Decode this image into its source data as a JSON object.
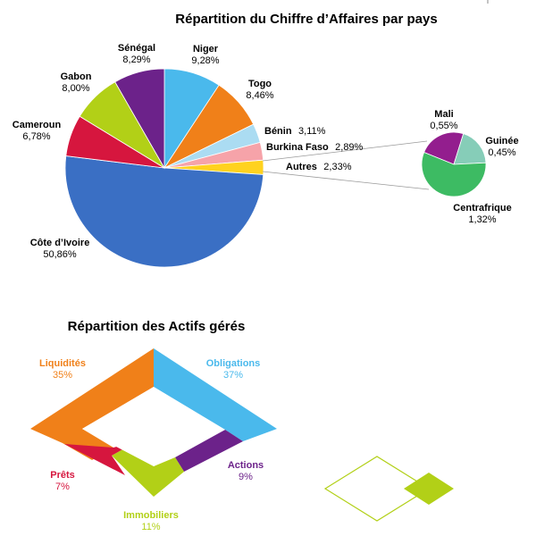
{
  "chart_data": [
    {
      "type": "pie",
      "title": "Répartition du Chiffre d’Affaires par pays",
      "slices": [
        {
          "name": "Niger",
          "value_label": "9,28%",
          "value": 9.28,
          "color": "#4ab9ec"
        },
        {
          "name": "Togo",
          "value_label": "8,46%",
          "value": 8.46,
          "color": "#f08019"
        },
        {
          "name": "Bénin",
          "value_label": "3,11%",
          "value": 3.11,
          "color": "#abdcf2"
        },
        {
          "name": "Burkina Faso",
          "value_label": "2,89%",
          "value": 2.89,
          "color": "#f6a3a9"
        },
        {
          "name": "Autres",
          "value_label": "2,33%",
          "value": 2.33,
          "color": "#ffd21f"
        },
        {
          "name": "Côte d’Ivoire",
          "value_label": "50,86%",
          "value": 50.86,
          "color": "#3a6fc4"
        },
        {
          "name": "Cameroun",
          "value_label": "6,78%",
          "value": 6.78,
          "color": "#d6163e"
        },
        {
          "name": "Gabon",
          "value_label": "8,00%",
          "value": 8.0,
          "color": "#b2d017"
        },
        {
          "name": "Sénégal",
          "value_label": "8,29%",
          "value": 8.29,
          "color": "#6c228a"
        }
      ]
    },
    {
      "type": "pie",
      "title": "",
      "detail_of": "Autres",
      "slices": [
        {
          "name": "Mali",
          "value_label": "0,55%",
          "value": 0.55,
          "color": "#931e8e"
        },
        {
          "name": "Guinée",
          "value_label": "0,45%",
          "value": 0.45,
          "color": "#86cdb8"
        },
        {
          "name": "Centrafrique",
          "value_label": "1,32%",
          "value": 1.32,
          "color": "#3dbb63"
        }
      ]
    },
    {
      "type": "pie",
      "title": "Répartition des Actifs gérés",
      "shape": "diamond-ring",
      "slices": [
        {
          "name": "Liquidités",
          "value_label": "35%",
          "value": 35,
          "color": "#f08019"
        },
        {
          "name": "Obligations",
          "value_label": "37%",
          "value": 37,
          "color": "#4ab9ec"
        },
        {
          "name": "Actions",
          "value_label": "9%",
          "value": 9,
          "color": "#6c228a"
        },
        {
          "name": "Immobiliers",
          "value_label": "11%",
          "value": 11,
          "color": "#b2d017"
        },
        {
          "name": "Prêts",
          "value_label": "7%",
          "value": 7,
          "color": "#d6163e"
        }
      ]
    }
  ]
}
